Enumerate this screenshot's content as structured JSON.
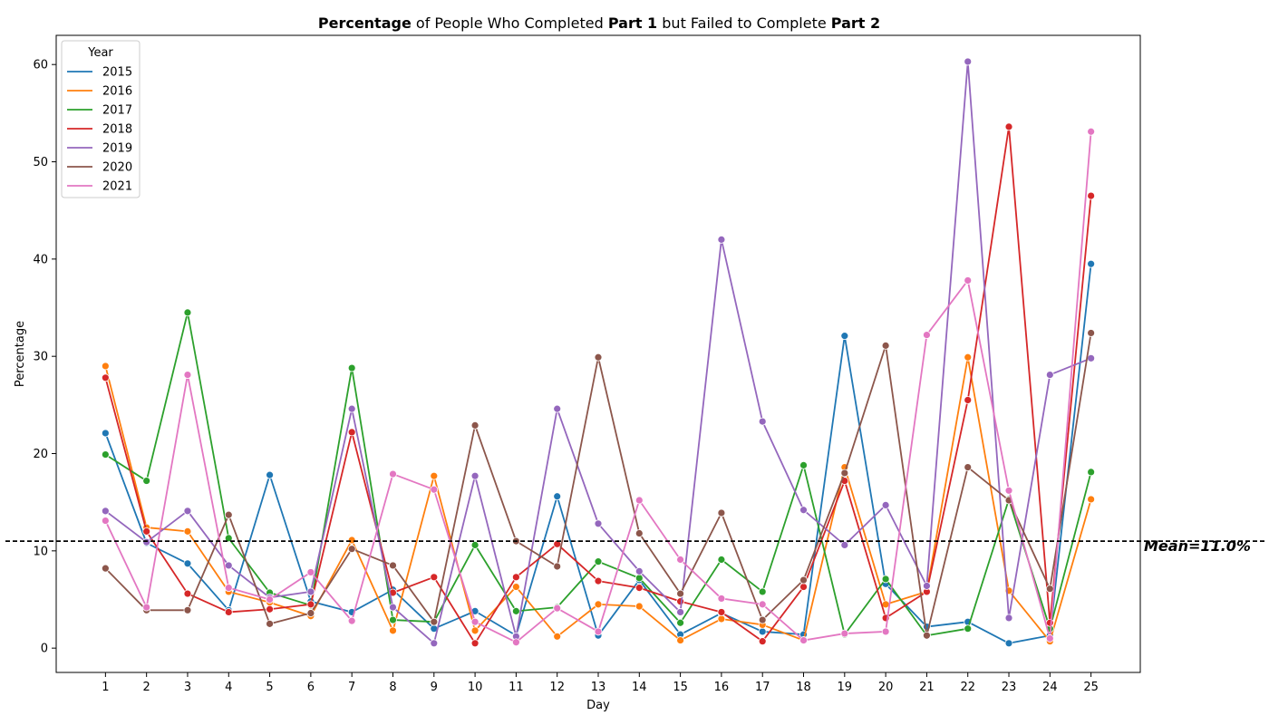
{
  "chart_data": {
    "type": "line",
    "title_parts": [
      {
        "text": "Percentage",
        "bold": true
      },
      {
        "text": " of People Who Completed ",
        "bold": false
      },
      {
        "text": "Part 1",
        "bold": true
      },
      {
        "text": " but Failed to Complete ",
        "bold": false
      },
      {
        "text": "Part 2",
        "bold": true
      }
    ],
    "xlabel": "Day",
    "ylabel": "Percentage",
    "x": [
      1,
      2,
      3,
      4,
      5,
      6,
      7,
      8,
      9,
      10,
      11,
      12,
      13,
      14,
      15,
      16,
      17,
      18,
      19,
      20,
      21,
      22,
      23,
      24,
      25
    ],
    "xlim": [
      -0.2,
      26.2
    ],
    "ylim": [
      -2.5,
      63
    ],
    "yticks": [
      0,
      10,
      20,
      30,
      40,
      50,
      60
    ],
    "legend_title": "Year",
    "legend_position": "top-left",
    "mean": {
      "value": 11.0,
      "label": "Mean=11.0%"
    },
    "series": [
      {
        "name": "2015",
        "color": "#1f77b4",
        "values": [
          22.1,
          10.8,
          8.7,
          3.9,
          17.8,
          4.8,
          3.7,
          6.0,
          2.0,
          3.8,
          1.3,
          15.6,
          1.3,
          7.0,
          1.4,
          3.6,
          1.7,
          1.4,
          32.1,
          6.6,
          2.2,
          2.7,
          0.5,
          1.3,
          39.5
        ]
      },
      {
        "name": "2016",
        "color": "#ff7f0e",
        "values": [
          29.0,
          12.4,
          12.0,
          5.8,
          4.7,
          3.3,
          11.1,
          1.8,
          17.7,
          1.8,
          6.3,
          1.2,
          4.5,
          4.3,
          0.8,
          3.0,
          2.4,
          0.8,
          18.6,
          4.5,
          5.8,
          29.9,
          5.9,
          0.7,
          15.3
        ]
      },
      {
        "name": "2017",
        "color": "#2ca02c",
        "values": [
          19.9,
          17.2,
          34.5,
          11.3,
          5.7,
          4.4,
          28.8,
          2.9,
          2.7,
          10.6,
          3.8,
          4.2,
          8.9,
          7.2,
          2.6,
          9.1,
          5.8,
          18.8,
          1.4,
          7.1,
          1.3,
          2.0,
          15.3,
          2.0,
          18.1
        ]
      },
      {
        "name": "2018",
        "color": "#d62728",
        "values": [
          27.8,
          12.0,
          5.6,
          3.7,
          4.0,
          4.5,
          22.2,
          5.7,
          7.3,
          0.5,
          7.3,
          10.7,
          6.9,
          6.2,
          4.8,
          3.7,
          0.7,
          6.3,
          17.2,
          3.1,
          5.8,
          25.5,
          53.6,
          2.6,
          46.5
        ]
      },
      {
        "name": "2019",
        "color": "#9467bd",
        "values": [
          14.1,
          10.9,
          14.1,
          8.5,
          5.2,
          5.8,
          24.6,
          4.2,
          0.5,
          17.7,
          1.2,
          24.6,
          12.8,
          7.9,
          3.7,
          42.0,
          23.3,
          14.2,
          10.6,
          14.7,
          6.4,
          60.3,
          3.1,
          28.1,
          29.8
        ]
      },
      {
        "name": "2020",
        "color": "#8c564b",
        "values": [
          8.2,
          3.9,
          3.9,
          13.7,
          2.5,
          3.6,
          10.2,
          8.5,
          2.7,
          22.9,
          11.0,
          8.4,
          29.9,
          11.8,
          5.6,
          13.9,
          2.9,
          7.0,
          18.0,
          31.1,
          1.3,
          18.6,
          15.2,
          6.1,
          32.4
        ]
      },
      {
        "name": "2021",
        "color": "#e377c2",
        "values": [
          13.1,
          4.2,
          28.1,
          6.2,
          5.0,
          7.8,
          2.8,
          17.9,
          16.3,
          2.7,
          0.6,
          4.1,
          1.7,
          15.2,
          9.1,
          5.1,
          4.5,
          0.8,
          1.5,
          1.7,
          32.2,
          37.8,
          16.2,
          1.0,
          53.1
        ]
      }
    ]
  }
}
